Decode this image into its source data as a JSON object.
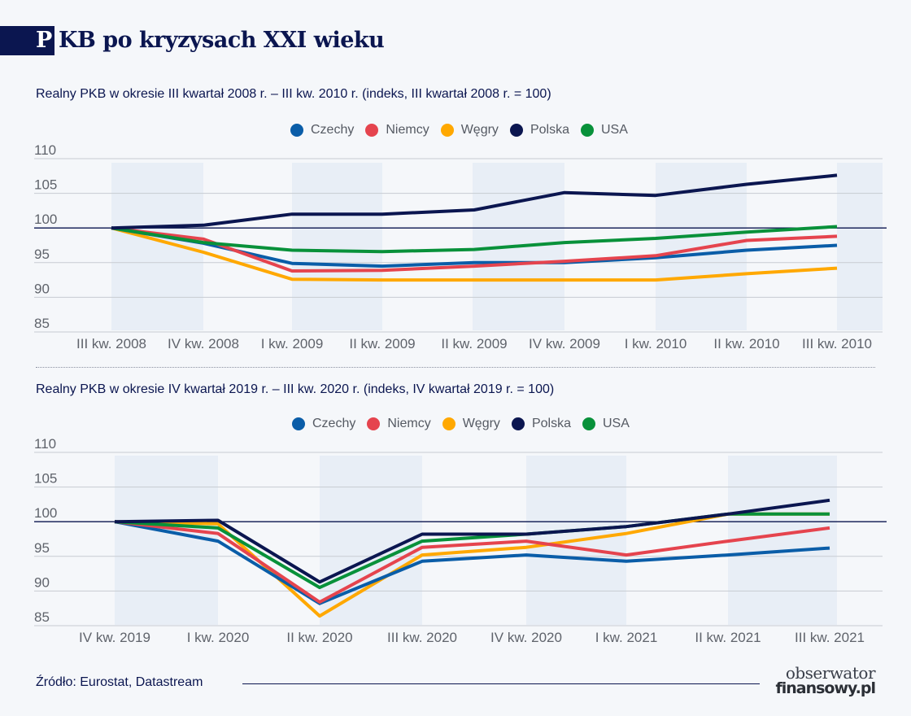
{
  "header": {
    "title_initial": "P",
    "title_rest": "KB po kryzysach XXI wieku"
  },
  "colors": {
    "Czechy": "#0a5da8",
    "Niemcy": "#e5444e",
    "Węgry": "#ffa800",
    "Polska": "#0b1650",
    "USA": "#08913a",
    "band": "#e8eef6",
    "grid": "#c7cbd2",
    "baseline": "#0b1650"
  },
  "chart_data": [
    {
      "type": "line",
      "title": "Realny PKB w okresie III kwartał 2008 r. – III kw. 2010 r. (indeks, III kwartał 2008 r. = 100)",
      "categories": [
        "III kw. 2008",
        "IV kw. 2008",
        "I kw. 2009",
        "II kw. 2009",
        "II kw. 2009",
        "IV kw. 2009",
        "I kw. 2010",
        "II kw. 2010",
        "III kw. 2010"
      ],
      "ylim": [
        85,
        110
      ],
      "yticks": [
        "110",
        "105",
        "100",
        "95",
        "90",
        "85"
      ],
      "grid": true,
      "legend": "top-center",
      "series": [
        {
          "name": "Czechy",
          "values": [
            100,
            97.8,
            94.9,
            94.5,
            95.0,
            95.0,
            95.7,
            96.8,
            97.5
          ]
        },
        {
          "name": "Niemcy",
          "values": [
            100,
            98.4,
            93.8,
            93.9,
            94.5,
            95.2,
            96.0,
            98.2,
            98.8
          ]
        },
        {
          "name": "Węgry",
          "values": [
            100,
            96.5,
            92.6,
            92.5,
            92.5,
            92.5,
            92.5,
            93.4,
            94.2
          ]
        },
        {
          "name": "Polska",
          "values": [
            100,
            100.4,
            102.0,
            102.0,
            102.6,
            105.1,
            104.7,
            106.3,
            107.6
          ]
        },
        {
          "name": "USA",
          "values": [
            100,
            97.9,
            96.8,
            96.6,
            96.9,
            97.9,
            98.5,
            99.4,
            100.2
          ]
        }
      ]
    },
    {
      "type": "line",
      "title": "Realny PKB w okresie IV kwartał 2019 r. – III kw. 2020 r. (indeks, IV kwartał 2019 r. = 100)",
      "categories": [
        "IV kw. 2019",
        "I kw. 2020",
        "II kw. 2020",
        "III kw. 2020",
        "IV kw. 2020",
        "I kw. 2021",
        "II kw. 2021",
        "III kw. 2021"
      ],
      "ylim": [
        85,
        110
      ],
      "yticks": [
        "110",
        "105",
        "100",
        "95",
        "90",
        "85"
      ],
      "grid": true,
      "legend": "top-center",
      "series": [
        {
          "name": "Czechy",
          "values": [
            100,
            97.2,
            88.2,
            94.3,
            95.2,
            94.3,
            95.2,
            96.2
          ]
        },
        {
          "name": "Niemcy",
          "values": [
            100,
            98.3,
            88.4,
            96.3,
            97.2,
            95.2,
            97.2,
            99.1
          ]
        },
        {
          "name": "Węgry",
          "values": [
            100,
            99.7,
            86.4,
            95.2,
            96.3,
            98.3,
            101.1,
            101.1
          ]
        },
        {
          "name": "Polska",
          "values": [
            100,
            100.2,
            91.3,
            98.2,
            98.2,
            99.3,
            101.1,
            103.1
          ]
        },
        {
          "name": "USA",
          "values": [
            100,
            99.1,
            90.5,
            97.2,
            98.2,
            99.3,
            101.1,
            101.1
          ]
        }
      ]
    }
  ],
  "footer": {
    "source": "Źródło: Eurostat, Datastream",
    "logo_line1": "obserwator",
    "logo_line2": "finansowy.pl"
  }
}
